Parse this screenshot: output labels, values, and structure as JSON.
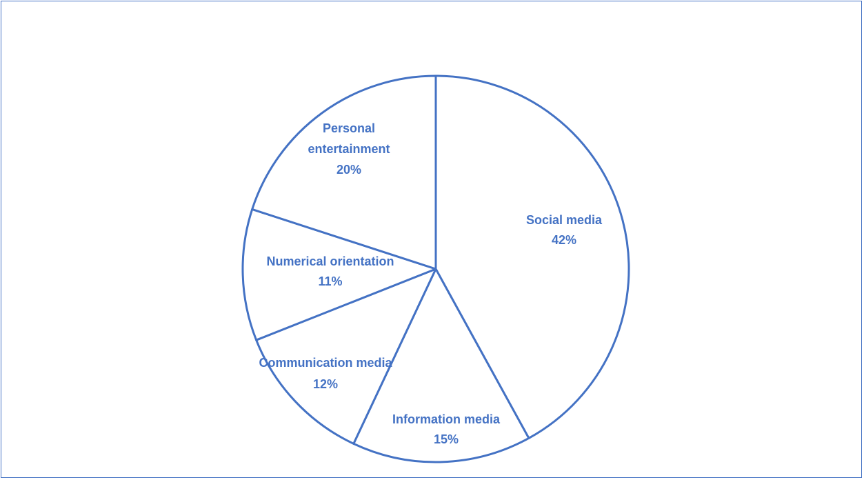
{
  "chart_data": {
    "type": "pie",
    "title": "",
    "legend": "none",
    "slices": [
      {
        "label": "Social media",
        "percent_label": "42%",
        "value": 42
      },
      {
        "label": "Information media",
        "percent_label": "15%",
        "value": 15
      },
      {
        "label": "Communication media",
        "percent_label": "12%",
        "value": 12
      },
      {
        "label": "Numerical orientation",
        "percent_label": "11%",
        "value": 11
      },
      {
        "label": "Personal entertainment",
        "percent_label": "20%",
        "value": 20
      }
    ],
    "colors": {
      "outline": "#4472c4",
      "fill": "#ffffff",
      "label": "#4472c4"
    }
  }
}
